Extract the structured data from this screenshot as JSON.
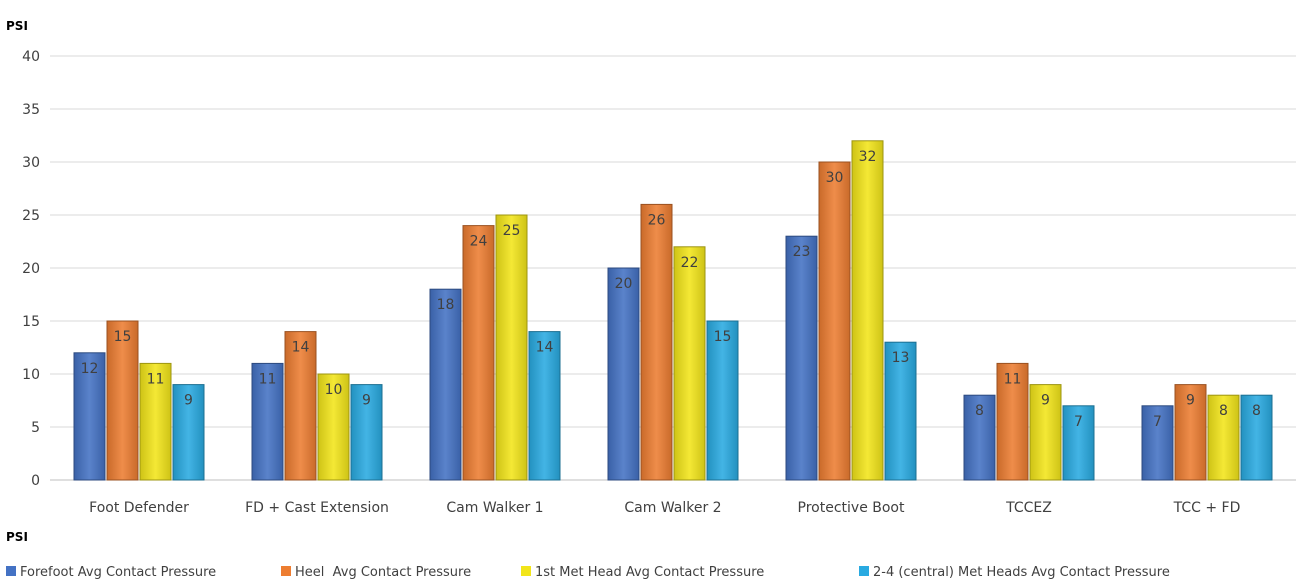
{
  "chart_data": {
    "type": "bar",
    "title": "",
    "ylabel_top": "PSI",
    "xlabel_bottom": "PSI",
    "ylim": [
      0,
      40
    ],
    "yticks": [
      0,
      5,
      10,
      15,
      20,
      25,
      30,
      35,
      40
    ],
    "grid": true,
    "legend_position": "bottom",
    "categories": [
      "Foot Defender",
      "FD + Cast Extension",
      "Cam Walker 1",
      "Cam Walker 2",
      "Protective Boot",
      "TCCEZ",
      "TCC + FD"
    ],
    "series": [
      {
        "name": "Forefoot Avg Contact Pressure",
        "color": "#4472c4",
        "values": [
          12,
          11,
          18,
          20,
          23,
          8,
          7
        ]
      },
      {
        "name": "Heel  Avg Contact Pressure",
        "color": "#ed7d31",
        "values": [
          15,
          14,
          24,
          26,
          30,
          11,
          9
        ]
      },
      {
        "name": "1st Met Head Avg Contact Pressure",
        "color": "#f2e51a",
        "values": [
          11,
          10,
          25,
          22,
          32,
          9,
          8
        ]
      },
      {
        "name": "2-4 (central) Met Heads Avg Contact Pressure",
        "color": "#29aae1",
        "values": [
          9,
          9,
          14,
          15,
          13,
          7,
          8
        ]
      }
    ]
  }
}
